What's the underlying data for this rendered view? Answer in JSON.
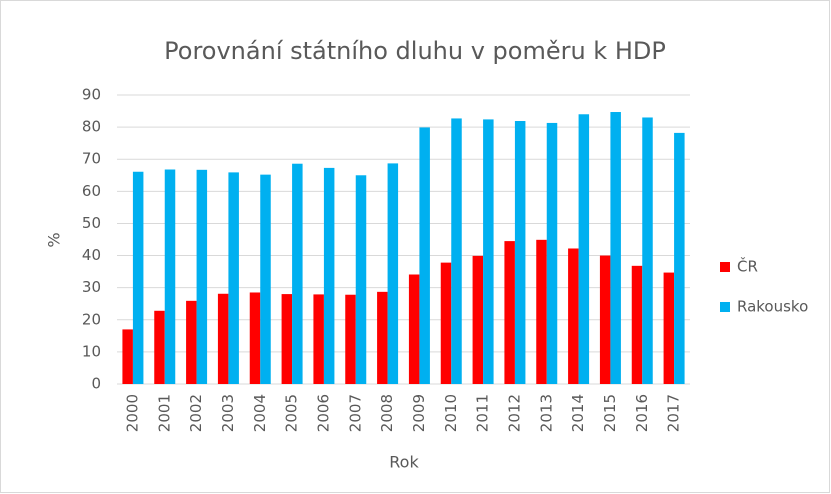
{
  "chart_data": {
    "type": "bar",
    "title": "Porovnání státního dluhu v poměru k HDP",
    "x_label": "Rok",
    "y_label": "%",
    "categories": [
      "2000",
      "2001",
      "2002",
      "2003",
      "2004",
      "2005",
      "2006",
      "2007",
      "2008",
      "2009",
      "2010",
      "2011",
      "2012",
      "2013",
      "2014",
      "2015",
      "2016",
      "2017"
    ],
    "series": [
      {
        "name": "ČR",
        "color": "#ff0000",
        "values": [
          17.0,
          22.8,
          25.9,
          28.1,
          28.5,
          28.0,
          27.9,
          27.8,
          28.7,
          34.1,
          37.8,
          39.9,
          44.5,
          44.9,
          42.2,
          40.0,
          36.8,
          34.7
        ]
      },
      {
        "name": "Rakousko",
        "color": "#00b0f0",
        "values": [
          66.1,
          66.8,
          66.7,
          65.9,
          65.2,
          68.6,
          67.3,
          65.0,
          68.7,
          79.9,
          82.7,
          82.4,
          81.9,
          81.3,
          84.0,
          84.7,
          83.0,
          78.2
        ]
      }
    ],
    "ylim": [
      0,
      90
    ],
    "yticks": [
      0,
      10,
      20,
      30,
      40,
      50,
      60,
      70,
      80,
      90
    ],
    "grid": true,
    "legend": "right"
  }
}
